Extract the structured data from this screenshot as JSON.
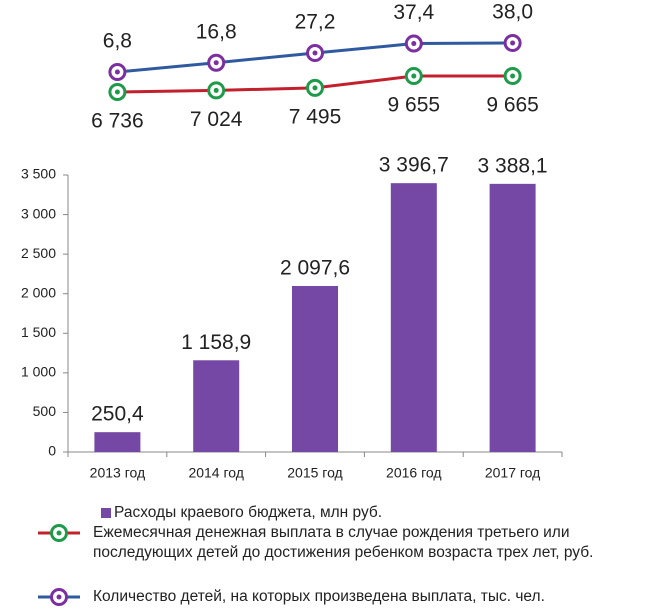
{
  "chart_data": {
    "type": "bar",
    "categories": [
      "2013 год",
      "2014 год",
      "2015 год",
      "2016 год",
      "2017 год"
    ],
    "ylim": [
      0,
      3500
    ],
    "yticks": [
      0,
      500,
      {
        "value": 1000,
        "label": "1 000"
      },
      {
        "value": 1500,
        "label": "1 500"
      },
      {
        "value": 2000,
        "label": "2 000"
      },
      {
        "value": 2500,
        "label": "2 500"
      },
      {
        "value": 3000,
        "label": "3 000"
      },
      {
        "value": 3500,
        "label": "3 500"
      }
    ],
    "series": [
      {
        "name": "Расходы краевого бюджета, млн руб.",
        "type": "bar",
        "color": "#7448a4",
        "values": [
          250.4,
          1158.9,
          2097.6,
          3396.7,
          3388.1
        ],
        "value_labels": [
          "250,4",
          "1 158,9",
          "2 097,6",
          "3 396,7",
          "3 388,1"
        ]
      },
      {
        "name": "Ежемесячная денежная выплата в случае рождения третьего или последующих детей до достижения ребенком возраста трех лет, руб.",
        "type": "line",
        "color": "#c3202e",
        "marker_color": "#1e9b4a",
        "values": [
          6736,
          7024,
          7495,
          9655,
          9665
        ],
        "value_labels": [
          "6 736",
          "7 024",
          "7 495",
          "9 655",
          "9 665"
        ]
      },
      {
        "name": "Количество детей, на которых произведена выплата, тыс. чел.",
        "type": "line",
        "color": "#2f5a9f",
        "marker_color": "#7b2fa0",
        "values": [
          6.8,
          16.8,
          27.2,
          37.4,
          38.0
        ],
        "value_labels": [
          "6,8",
          "16,8",
          "27,2",
          "37,4",
          "38,0"
        ]
      }
    ]
  }
}
